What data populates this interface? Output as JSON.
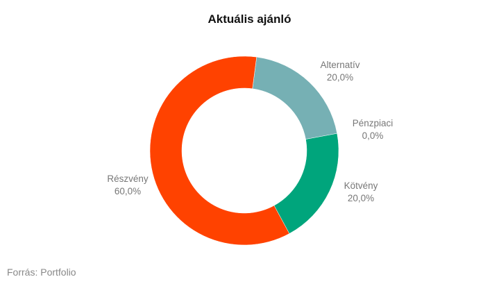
{
  "chart_data": {
    "type": "pie",
    "donut": true,
    "title": "Aktuális ajánló",
    "slices": [
      {
        "label": "Alternatív",
        "value": 20.0,
        "display": "20,0%",
        "color": "#76b0b4"
      },
      {
        "label": "Pénzpiaci",
        "value": 0.0,
        "display": "0,0%",
        "color": "#9e9e9e"
      },
      {
        "label": "Kötvény",
        "value": 20.0,
        "display": "20,0%",
        "color": "#00a57c"
      },
      {
        "label": "Részvény",
        "value": 60.0,
        "display": "60,0%",
        "color": "#ff4200"
      }
    ],
    "legend": "none"
  },
  "source": "Forrás: Portfolio"
}
